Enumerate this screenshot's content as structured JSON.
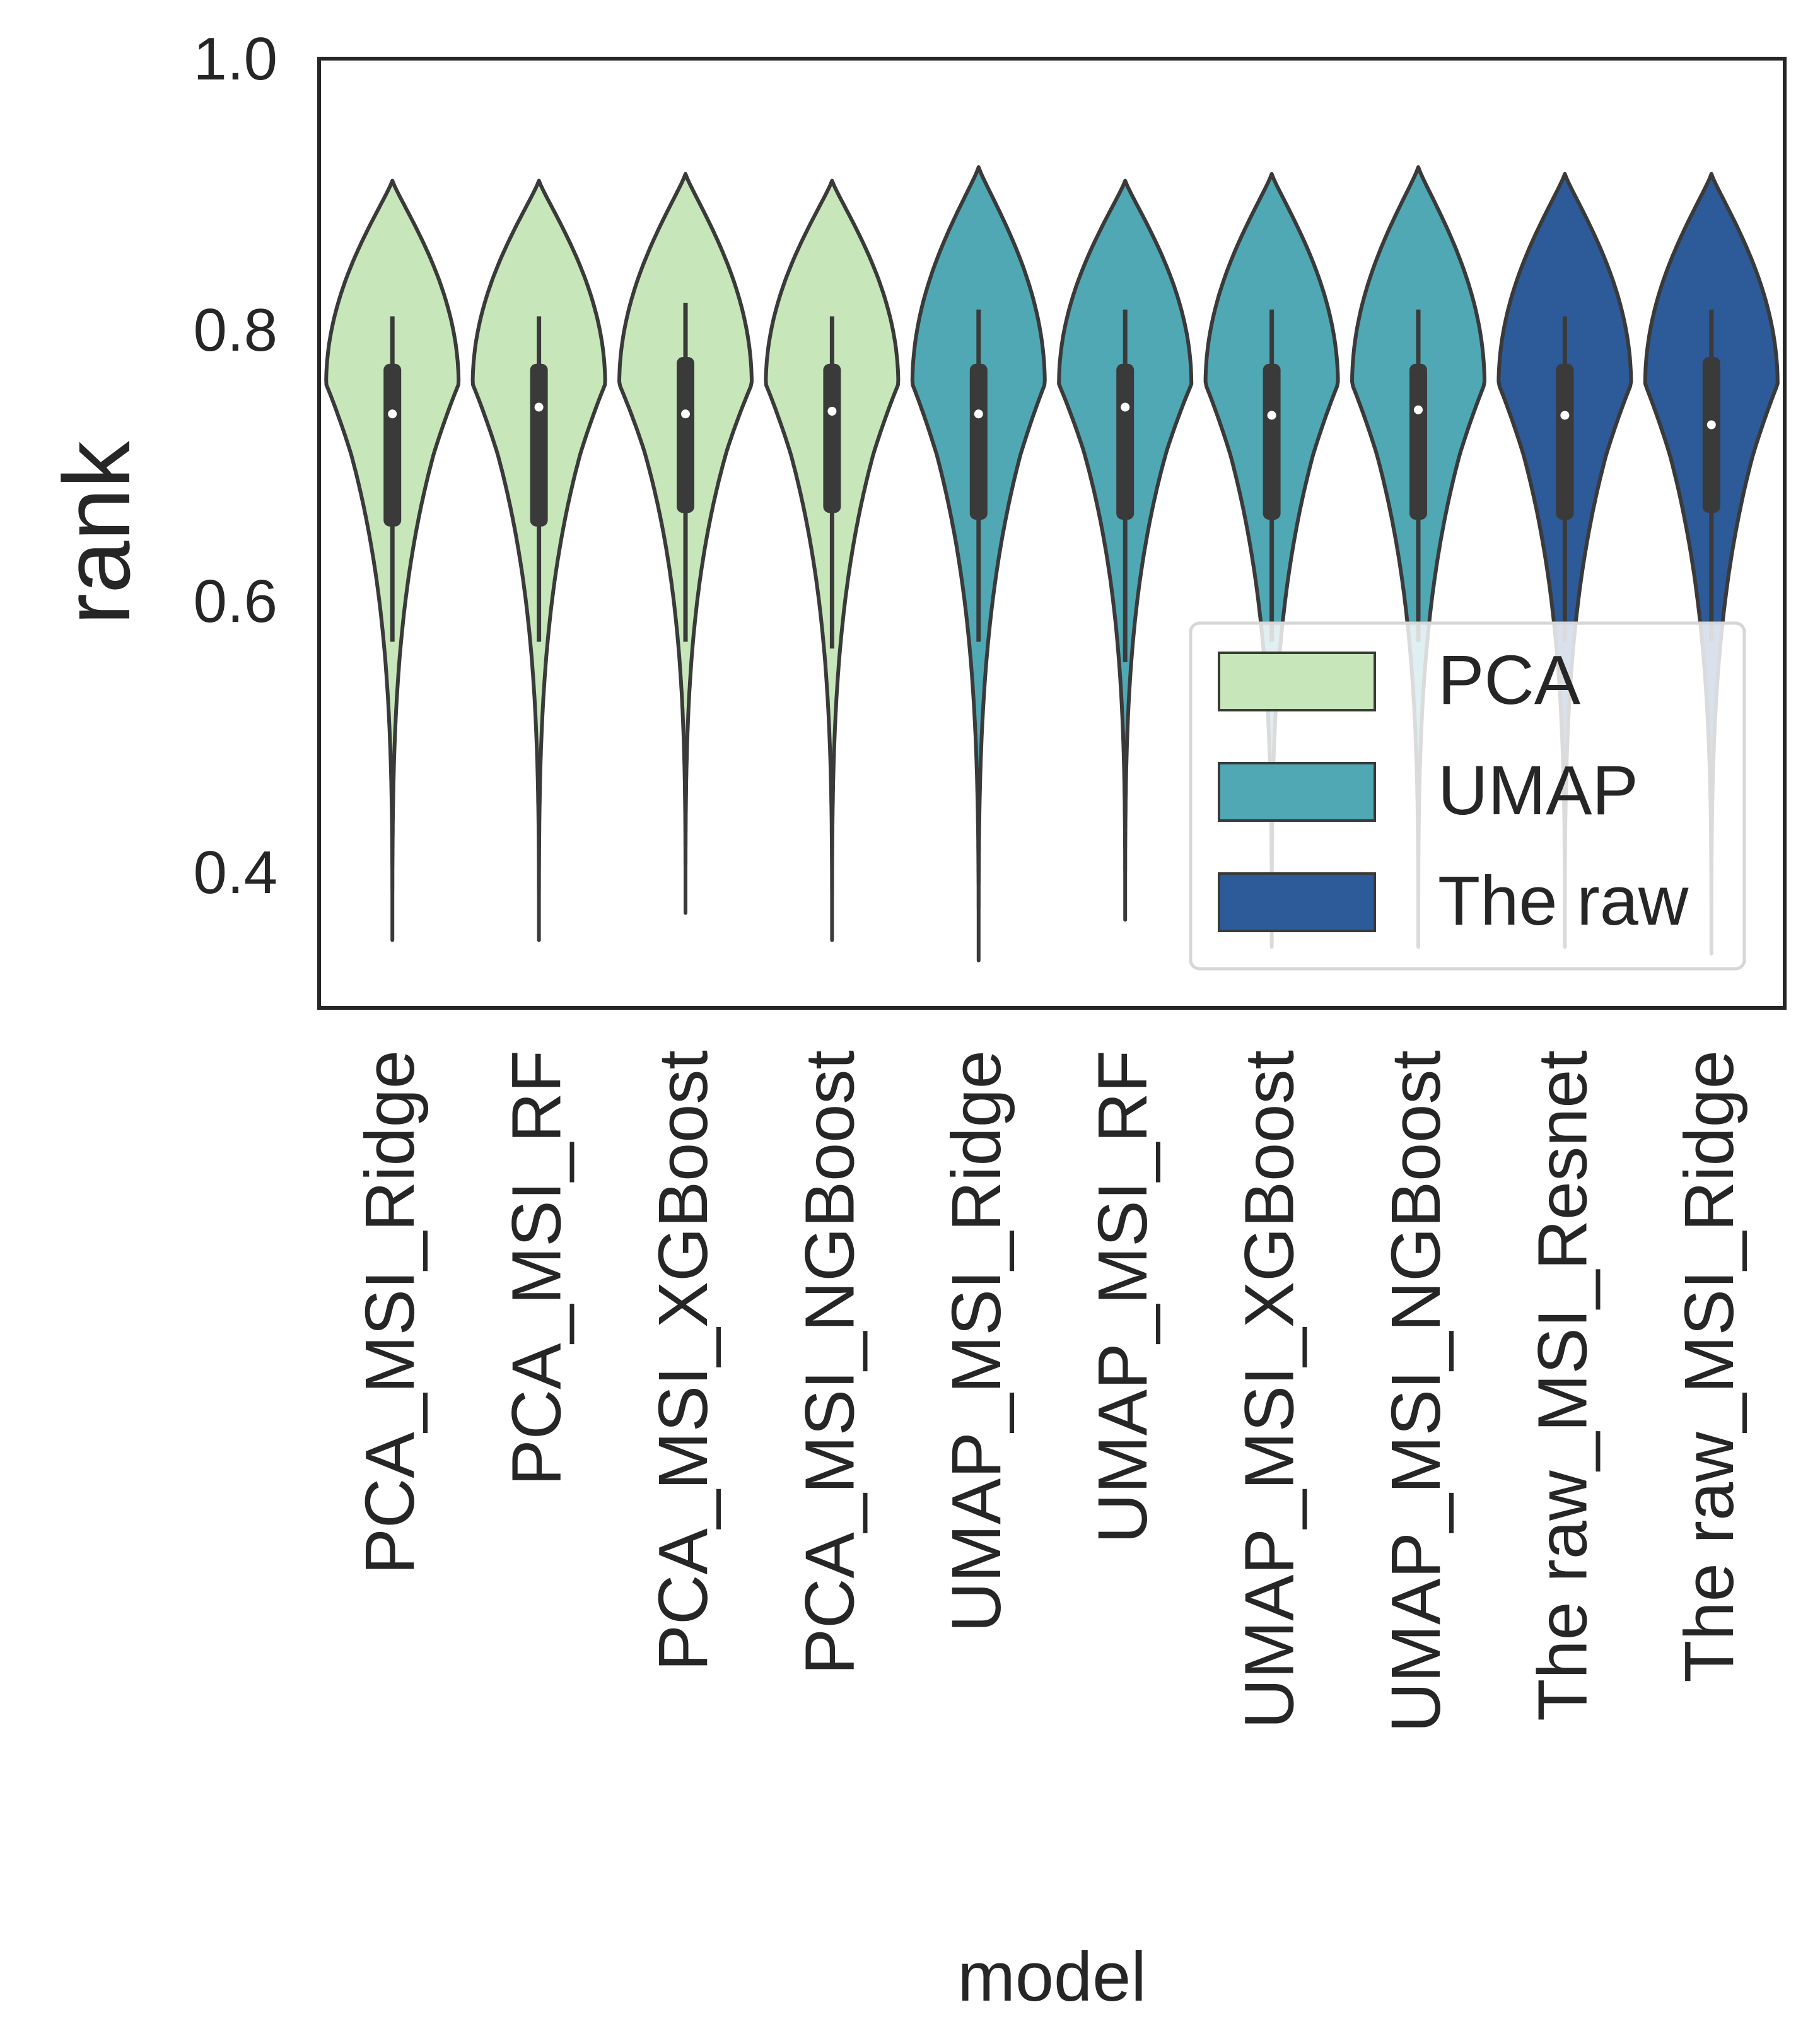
{
  "chart_data": {
    "type": "violin",
    "xlabel": "model",
    "ylabel": "rank",
    "ylim": [
      0.3,
      1.0
    ],
    "yticks": [
      0.4,
      0.6,
      0.8,
      1.0
    ],
    "ytick_labels": [
      "0.4",
      "0.6",
      "0.8",
      "1.0"
    ],
    "grid": false,
    "legend": {
      "placement": "lower-right",
      "entries": [
        {
          "label": "PCA",
          "color": "#c7e6b9"
        },
        {
          "label": "UMAP",
          "color": "#50a8b4"
        },
        {
          "label": "The raw",
          "color": "#2d5a98"
        }
      ]
    },
    "categories": [
      "PCA_MSI_Ridge",
      "PCA_MSI_RF",
      "PCA_MSI_XGBoost",
      "PCA_MSI_NGBoost",
      "UMAP_MSI_Ridge",
      "UMAP_MSI_RF",
      "UMAP_MSI_XGBoost",
      "UMAP_MSI_NGBoost",
      "The raw_MSI_Resnet",
      "The raw_MSI_Ridge"
    ],
    "series": [
      {
        "category": "PCA_MSI_Ridge",
        "group": "PCA",
        "min": 0.35,
        "max": 0.91,
        "whisker_low": 0.57,
        "whisker_high": 0.81,
        "q1": 0.655,
        "q3": 0.775,
        "median": 0.738,
        "max_width_at": 0.76
      },
      {
        "category": "PCA_MSI_RF",
        "group": "PCA",
        "min": 0.35,
        "max": 0.91,
        "whisker_low": 0.57,
        "whisker_high": 0.81,
        "q1": 0.655,
        "q3": 0.775,
        "median": 0.743,
        "max_width_at": 0.76
      },
      {
        "category": "PCA_MSI_XGBoost",
        "group": "PCA",
        "min": 0.37,
        "max": 0.915,
        "whisker_low": 0.57,
        "whisker_high": 0.82,
        "q1": 0.665,
        "q3": 0.78,
        "median": 0.738,
        "max_width_at": 0.76
      },
      {
        "category": "PCA_MSI_NGBoost",
        "group": "PCA",
        "min": 0.35,
        "max": 0.91,
        "whisker_low": 0.565,
        "whisker_high": 0.81,
        "q1": 0.665,
        "q3": 0.775,
        "median": 0.74,
        "max_width_at": 0.76
      },
      {
        "category": "UMAP_MSI_Ridge",
        "group": "UMAP",
        "min": 0.335,
        "max": 0.92,
        "whisker_low": 0.57,
        "whisker_high": 0.815,
        "q1": 0.66,
        "q3": 0.775,
        "median": 0.738,
        "max_width_at": 0.76
      },
      {
        "category": "UMAP_MSI_RF",
        "group": "UMAP",
        "min": 0.365,
        "max": 0.91,
        "whisker_low": 0.555,
        "whisker_high": 0.815,
        "q1": 0.66,
        "q3": 0.775,
        "median": 0.743,
        "max_width_at": 0.76
      },
      {
        "category": "UMAP_MSI_XGBoost",
        "group": "UMAP",
        "min": 0.345,
        "max": 0.915,
        "whisker_low": 0.57,
        "whisker_high": 0.815,
        "q1": 0.66,
        "q3": 0.775,
        "median": 0.737,
        "max_width_at": 0.76
      },
      {
        "category": "UMAP_MSI_NGBoost",
        "group": "UMAP",
        "min": 0.345,
        "max": 0.92,
        "whisker_low": 0.57,
        "whisker_high": 0.815,
        "q1": 0.66,
        "q3": 0.775,
        "median": 0.741,
        "max_width_at": 0.76
      },
      {
        "category": "The raw_MSI_Resnet",
        "group": "The raw",
        "min": 0.345,
        "max": 0.915,
        "whisker_low": 0.57,
        "whisker_high": 0.81,
        "q1": 0.66,
        "q3": 0.775,
        "median": 0.737,
        "max_width_at": 0.76
      },
      {
        "category": "The raw_MSI_Ridge",
        "group": "The raw",
        "min": 0.34,
        "max": 0.915,
        "whisker_low": 0.57,
        "whisker_high": 0.815,
        "q1": 0.665,
        "q3": 0.78,
        "median": 0.73,
        "max_width_at": 0.76
      }
    ]
  }
}
